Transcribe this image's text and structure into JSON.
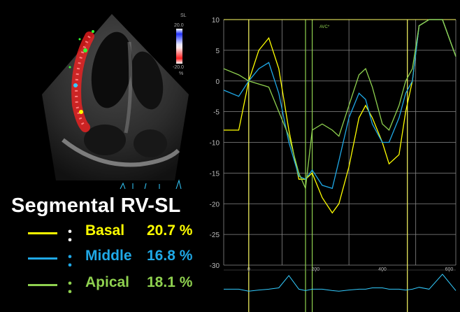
{
  "echo": {
    "scale_top": "20.0",
    "scale_label": "SL",
    "scale_bottom": "-20.0",
    "scale_unit": "%"
  },
  "plot": {
    "avc_label": "AVC*"
  },
  "heading": "Segmental RV-SL",
  "legend": [
    {
      "colon": "：",
      "name": "Basal",
      "value": "20.7 %",
      "color": "#ffff00"
    },
    {
      "colon": "：",
      "name": "Middle",
      "value": "16.8 %",
      "color": "#1fa8e6"
    },
    {
      "colon": "：",
      "name": "Apical",
      "value": "18.1 %",
      "color": "#8fd14f"
    }
  ],
  "chart_data": {
    "type": "line",
    "y_ticks": [
      "10",
      "5",
      "0",
      "-5",
      "-10",
      "-15",
      "-20",
      "-25",
      "-30"
    ],
    "x_ticks": [
      "0",
      "200",
      "400",
      "600"
    ],
    "ylim": [
      -30,
      10
    ],
    "xlim": [
      -75,
      620
    ],
    "x": [
      -75,
      -30,
      0,
      30,
      60,
      90,
      120,
      150,
      170,
      190,
      220,
      250,
      270,
      300,
      330,
      350,
      370,
      400,
      420,
      450,
      470,
      490,
      510,
      540,
      580,
      620
    ],
    "series": [
      {
        "name": "Basal",
        "color": "#ffff00",
        "values": [
          -8,
          -8,
          0,
          5,
          7,
          2,
          -8,
          -16,
          -16,
          -15,
          -19,
          -21.5,
          -20,
          -14,
          -6,
          -4,
          -6,
          -10,
          -13.5,
          -12,
          -5,
          0,
          9,
          10,
          10,
          4
        ]
      },
      {
        "name": "Middle",
        "color": "#1fa8e6",
        "values": [
          -1.5,
          -2.5,
          0,
          2,
          3,
          -2,
          -10,
          -15.5,
          -16,
          -14.5,
          -17,
          -17.5,
          -13,
          -6,
          -2,
          -3,
          -7,
          -10,
          -10,
          -6,
          -2,
          0,
          9,
          10,
          10,
          4
        ]
      },
      {
        "name": "Apical",
        "color": "#8fd14f",
        "values": [
          2,
          1,
          0,
          -0.5,
          -1,
          -5,
          -9,
          -15,
          -17.5,
          -8,
          -7,
          -8,
          -9,
          -4,
          1,
          2,
          -1,
          -7,
          -8,
          -4,
          0,
          2,
          9,
          10,
          10,
          4
        ]
      }
    ],
    "ecg": [
      0.55,
      0.55,
      0.62,
      0.58,
      0.55,
      0.5,
      0.05,
      0.55,
      0.6,
      0.55,
      0.55,
      0.6,
      0.62,
      0.58,
      0.55,
      0.55,
      0.5,
      0.5,
      0.55,
      0.55,
      0.58,
      0.55,
      0.48,
      0.55,
      0.0,
      0.6
    ],
    "vertical_markers": [
      {
        "x": 0,
        "color": "#ffff66"
      },
      {
        "x": 170,
        "color": "#8fd14f"
      },
      {
        "x": 190,
        "color": "#8fd14f"
      },
      {
        "x": 475,
        "color": "#ffff66"
      }
    ]
  }
}
